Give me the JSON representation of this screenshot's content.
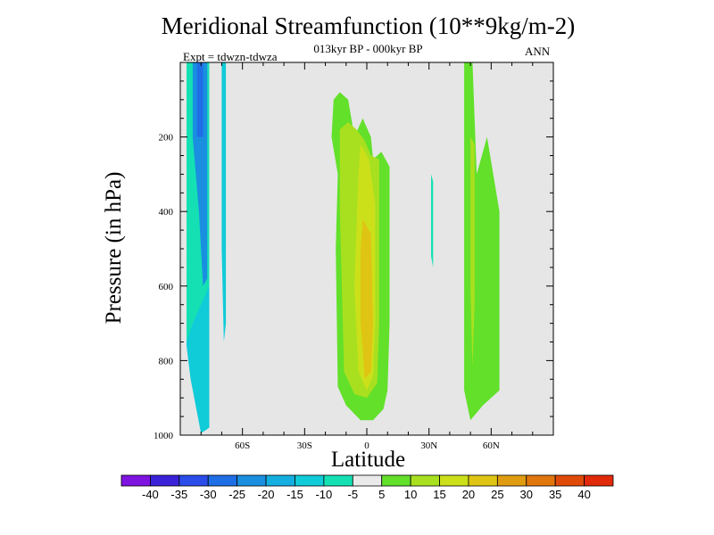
{
  "chart_data": {
    "type": "heatmap",
    "title": "Meridional Streamfunction (10**9kg/m-2)",
    "subtitle": "013kyr BP - 000kyr BP",
    "experiment_label": "Expt = tdwzn-tdwza",
    "season": "ANN",
    "xlabel": "Latitude",
    "ylabel": "Pressure (in hPa)",
    "xlim": [
      -90,
      90
    ],
    "ylim": [
      1000,
      0
    ],
    "x_ticks": [
      {
        "value": -60,
        "label": "60S"
      },
      {
        "value": -30,
        "label": "30S"
      },
      {
        "value": 0,
        "label": "0"
      },
      {
        "value": 30,
        "label": "30N"
      },
      {
        "value": 60,
        "label": "60N"
      }
    ],
    "y_ticks": [
      {
        "value": 200,
        "label": "200"
      },
      {
        "value": 400,
        "label": "400"
      },
      {
        "value": 600,
        "label": "600"
      },
      {
        "value": 800,
        "label": "800"
      },
      {
        "value": 1000,
        "label": "1000"
      }
    ],
    "background_color": "#e6e6e6",
    "colorbar": {
      "labels": [
        "-40",
        "-35",
        "-30",
        "-25",
        "-20",
        "-15",
        "-10",
        "-5",
        "5",
        "10",
        "15",
        "20",
        "25",
        "30",
        "35",
        "40"
      ],
      "colors": [
        "#7e13e0",
        "#3a22d8",
        "#2a4ce8",
        "#1e6ee6",
        "#1a8fe0",
        "#14afe0",
        "#10cbd8",
        "#14e0b4",
        "#eaeaea",
        "#62e02a",
        "#a8e020",
        "#cce01a",
        "#e0c414",
        "#e09c10",
        "#e0760c",
        "#e04a08",
        "#e02a0a"
      ]
    },
    "regions": [
      {
        "color": "#10cbd8",
        "points": [
          [
            -87,
            0
          ],
          [
            -76,
            0
          ],
          [
            -76,
            980
          ],
          [
            -80,
            995
          ],
          [
            -85,
            850
          ],
          [
            -87,
            760
          ]
        ]
      },
      {
        "color": "#14e0b4",
        "points": [
          [
            -87,
            0
          ],
          [
            -76,
            0
          ],
          [
            -76,
            600
          ],
          [
            -80,
            650
          ],
          [
            -84,
            700
          ],
          [
            -87,
            750
          ],
          [
            -87,
            200
          ]
        ]
      },
      {
        "color": "#1a8fe0",
        "points": [
          [
            -84,
            0
          ],
          [
            -77,
            0
          ],
          [
            -77,
            580
          ],
          [
            -79,
            600
          ],
          [
            -81,
            400
          ],
          [
            -84,
            200
          ]
        ]
      },
      {
        "color": "#1e6ee6",
        "points": [
          [
            -82,
            0
          ],
          [
            -79,
            0
          ],
          [
            -79,
            200
          ],
          [
            -82,
            200
          ]
        ]
      },
      {
        "color": "#10cbd8",
        "points": [
          [
            -70,
            0
          ],
          [
            -68,
            0
          ],
          [
            -68,
            700
          ],
          [
            -69,
            750
          ],
          [
            -70,
            500
          ]
        ]
      },
      {
        "color": "#62e02a",
        "points": [
          [
            -16,
            100
          ],
          [
            -13,
            80
          ],
          [
            -9,
            100
          ],
          [
            -6,
            200
          ],
          [
            -2,
            150
          ],
          [
            2,
            200
          ],
          [
            3,
            260
          ],
          [
            7,
            240
          ],
          [
            11,
            280
          ],
          [
            11,
            700
          ],
          [
            10,
            880
          ],
          [
            8,
            930
          ],
          [
            3,
            960
          ],
          [
            -3,
            960
          ],
          [
            -10,
            920
          ],
          [
            -14,
            870
          ],
          [
            -15,
            500
          ],
          [
            -14,
            300
          ],
          [
            -17,
            200
          ]
        ]
      },
      {
        "color": "#a8e020",
        "points": [
          [
            -13,
            180
          ],
          [
            -9,
            160
          ],
          [
            -5,
            180
          ],
          [
            -1,
            210
          ],
          [
            2,
            250
          ],
          [
            6,
            260
          ],
          [
            6,
            700
          ],
          [
            5,
            860
          ],
          [
            0,
            900
          ],
          [
            -6,
            890
          ],
          [
            -11,
            830
          ],
          [
            -13,
            400
          ]
        ]
      },
      {
        "color": "#cce01a",
        "points": [
          [
            -3,
            220
          ],
          [
            1,
            260
          ],
          [
            4,
            380
          ],
          [
            4,
            700
          ],
          [
            3,
            840
          ],
          [
            0,
            880
          ],
          [
            -4,
            830
          ],
          [
            -6,
            600
          ],
          [
            -4,
            300
          ]
        ]
      },
      {
        "color": "#e0c414",
        "points": [
          [
            -2,
            420
          ],
          [
            2,
            460
          ],
          [
            3,
            700
          ],
          [
            2,
            830
          ],
          [
            -1,
            850
          ],
          [
            -3,
            700
          ],
          [
            -3,
            500
          ]
        ]
      },
      {
        "color": "#62e02a",
        "points": [
          [
            47,
            0
          ],
          [
            51,
            0
          ],
          [
            53,
            300
          ],
          [
            58,
            200
          ],
          [
            64,
            400
          ],
          [
            64,
            880
          ],
          [
            56,
            920
          ],
          [
            50,
            960
          ],
          [
            47,
            880
          ],
          [
            47,
            200
          ]
        ]
      },
      {
        "color": "#a8e020",
        "points": [
          [
            50,
            200
          ],
          [
            52,
            220
          ],
          [
            52,
            650
          ],
          [
            51,
            820
          ],
          [
            50,
            600
          ]
        ]
      },
      {
        "color": "#14e0b4",
        "points": [
          [
            31,
            300
          ],
          [
            32,
            320
          ],
          [
            32,
            550
          ],
          [
            31,
            520
          ]
        ]
      }
    ]
  }
}
